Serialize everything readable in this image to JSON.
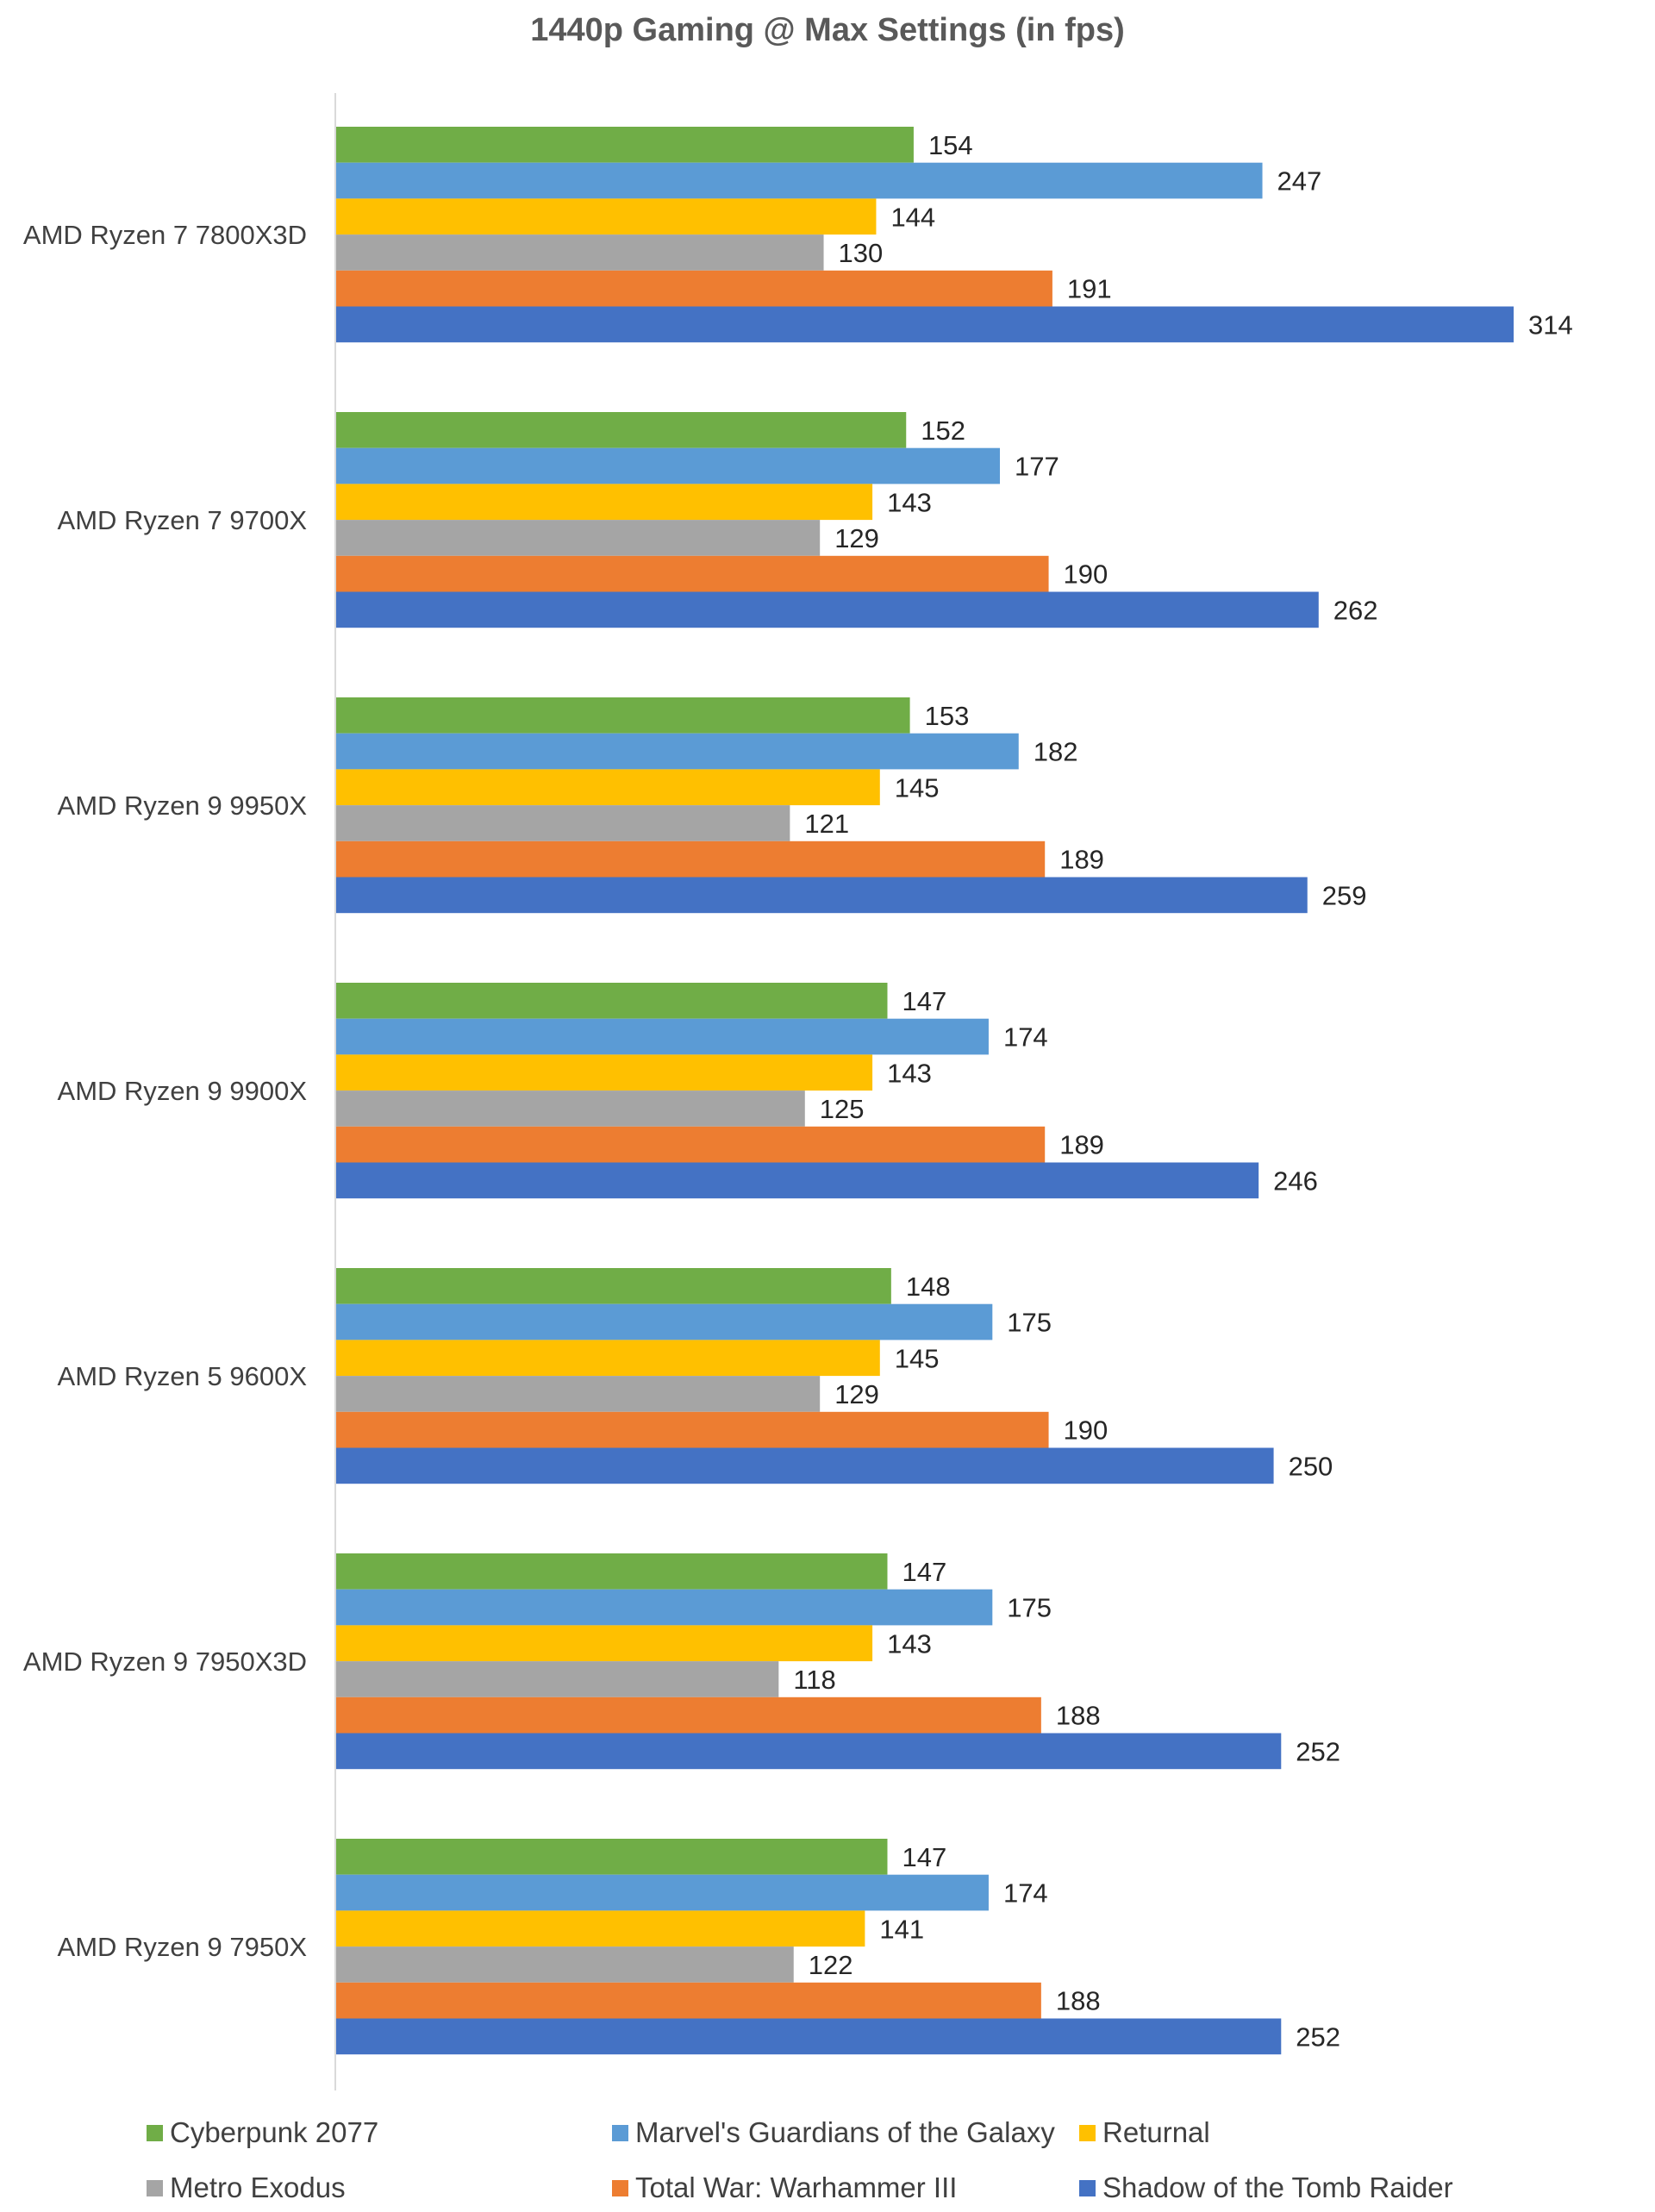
{
  "chart_data": {
    "type": "bar",
    "orientation": "horizontal",
    "title": "1440p Gaming @ Max Settings (in fps)",
    "xlabel": "",
    "ylabel": "",
    "xlim": [
      0,
      330
    ],
    "grid": false,
    "legend_position": "bottom",
    "categories": [
      "AMD Ryzen 7 7800X3D",
      "AMD Ryzen 7 9700X",
      "AMD Ryzen 9 9950X",
      "AMD Ryzen 9 9900X",
      "AMD Ryzen 5 9600X",
      "AMD Ryzen 9 7950X3D",
      "AMD Ryzen 9 7950X"
    ],
    "series": [
      {
        "name": "Cyberpunk 2077",
        "color": "#70AD47",
        "values": [
          154,
          152,
          153,
          147,
          148,
          147,
          147
        ]
      },
      {
        "name": "Marvel's Guardians of the Galaxy",
        "color": "#5B9BD5",
        "values": [
          247,
          177,
          182,
          174,
          175,
          175,
          174
        ]
      },
      {
        "name": "Returnal",
        "color": "#FFC000",
        "values": [
          144,
          143,
          145,
          143,
          145,
          143,
          141
        ]
      },
      {
        "name": "Metro Exodus",
        "color": "#A5A5A5",
        "values": [
          130,
          129,
          121,
          125,
          129,
          118,
          122
        ]
      },
      {
        "name": "Total War: Warhammer III",
        "color": "#ED7D31",
        "values": [
          191,
          190,
          189,
          189,
          190,
          188,
          188
        ]
      },
      {
        "name": "Shadow of the Tomb Raider",
        "color": "#4472C4",
        "values": [
          314,
          262,
          259,
          246,
          250,
          252,
          252
        ]
      }
    ]
  }
}
